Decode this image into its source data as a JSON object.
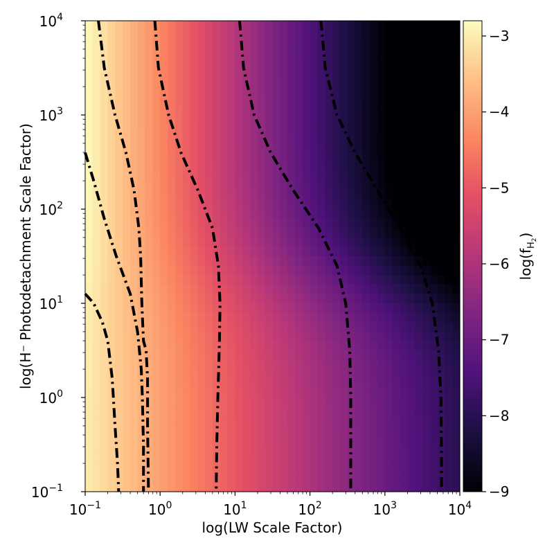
{
  "chart_data": {
    "type": "heatmap",
    "title": "",
    "xlabel": "log(LW Scale Factor)",
    "ylabel": "log(H⁻ Photodetachment Scale Factor)",
    "x_scale": "log",
    "y_scale": "log",
    "xlim": [
      0.1,
      10000
    ],
    "ylim": [
      0.1,
      10000
    ],
    "x_ticks": [
      {
        "value": 0.1,
        "base": "10",
        "exp": "−1"
      },
      {
        "value": 1,
        "base": "10",
        "exp": "0"
      },
      {
        "value": 10,
        "base": "10",
        "exp": "1"
      },
      {
        "value": 100,
        "base": "10",
        "exp": "2"
      },
      {
        "value": 1000,
        "base": "10",
        "exp": "3"
      },
      {
        "value": 10000,
        "base": "10",
        "exp": "4"
      }
    ],
    "y_ticks": [
      {
        "value": 0.1,
        "base": "10",
        "exp": "−1"
      },
      {
        "value": 1,
        "base": "10",
        "exp": "0"
      },
      {
        "value": 10,
        "base": "10",
        "exp": "1"
      },
      {
        "value": 100,
        "base": "10",
        "exp": "2"
      },
      {
        "value": 1000,
        "base": "10",
        "exp": "3"
      },
      {
        "value": 10000,
        "base": "10",
        "exp": "4"
      }
    ],
    "colormap": "magma",
    "colorbar": {
      "label_main": "log(f",
      "label_sub": "H",
      "label_subsub": "2",
      "label_close": ")",
      "range": [
        -9,
        -2.8
      ],
      "ticks": [
        {
          "value": -3,
          "label": "−3"
        },
        {
          "value": -4,
          "label": "−4"
        },
        {
          "value": -5,
          "label": "−5"
        },
        {
          "value": -6,
          "label": "−6"
        },
        {
          "value": -7,
          "label": "−7"
        },
        {
          "value": -8,
          "label": "−8"
        },
        {
          "value": -9,
          "label": "−9"
        }
      ]
    },
    "grid": false,
    "contour_style": "dash-dot black",
    "contours": [
      {
        "points": [
          [
            0.1,
            12.6
          ],
          [
            0.13,
            10
          ],
          [
            0.17,
            6.3
          ],
          [
            0.2,
            3.98
          ],
          [
            0.23,
            1.58
          ],
          [
            0.25,
            0.5
          ],
          [
            0.27,
            0.2
          ],
          [
            0.28,
            0.1
          ]
        ]
      },
      {
        "points": [
          [
            0.1,
            398
          ],
          [
            0.13,
            200
          ],
          [
            0.18,
            79
          ],
          [
            0.26,
            31.6
          ],
          [
            0.4,
            12.6
          ],
          [
            0.5,
            5
          ],
          [
            0.56,
            2
          ],
          [
            0.58,
            1
          ],
          [
            0.6,
            0.3
          ],
          [
            0.6,
            0.1
          ]
        ]
      },
      {
        "points": [
          [
            0.15,
            10000
          ],
          [
            0.18,
            3162
          ],
          [
            0.25,
            1000
          ],
          [
            0.35,
            398
          ],
          [
            0.45,
            158
          ],
          [
            0.52,
            63
          ],
          [
            0.55,
            31.6
          ],
          [
            0.57,
            10
          ],
          [
            0.6,
            3.98
          ],
          [
            0.65,
            3.16
          ],
          [
            0.68,
            1.58
          ],
          [
            0.68,
            0.5
          ],
          [
            0.7,
            0.1
          ]
        ]
      },
      {
        "points": [
          [
            0.85,
            10000
          ],
          [
            0.95,
            3162
          ],
          [
            1.3,
            1000
          ],
          [
            1.9,
            398
          ],
          [
            3.2,
            158
          ],
          [
            5,
            63
          ],
          [
            6,
            25
          ],
          [
            6.3,
            10
          ],
          [
            6.2,
            3.98
          ],
          [
            5.9,
            1
          ],
          [
            5.7,
            0.3
          ],
          [
            5.6,
            0.1
          ]
        ]
      },
      {
        "points": [
          [
            11.5,
            10000
          ],
          [
            13,
            3162
          ],
          [
            18,
            1000
          ],
          [
            30,
            398
          ],
          [
            60,
            158
          ],
          [
            130,
            63
          ],
          [
            230,
            25
          ],
          [
            300,
            10
          ],
          [
            340,
            3.16
          ],
          [
            350,
            1
          ],
          [
            350,
            0.25
          ],
          [
            350,
            0.1
          ]
        ]
      },
      {
        "points": [
          [
            140,
            10000
          ],
          [
            160,
            3162
          ],
          [
            230,
            1000
          ],
          [
            400,
            398
          ],
          [
            800,
            158
          ],
          [
            1600,
            63
          ],
          [
            3000,
            25
          ],
          [
            4300,
            10
          ],
          [
            5200,
            3.16
          ],
          [
            5600,
            1
          ],
          [
            5700,
            0.2
          ],
          [
            5700,
            0.1
          ]
        ]
      }
    ]
  }
}
